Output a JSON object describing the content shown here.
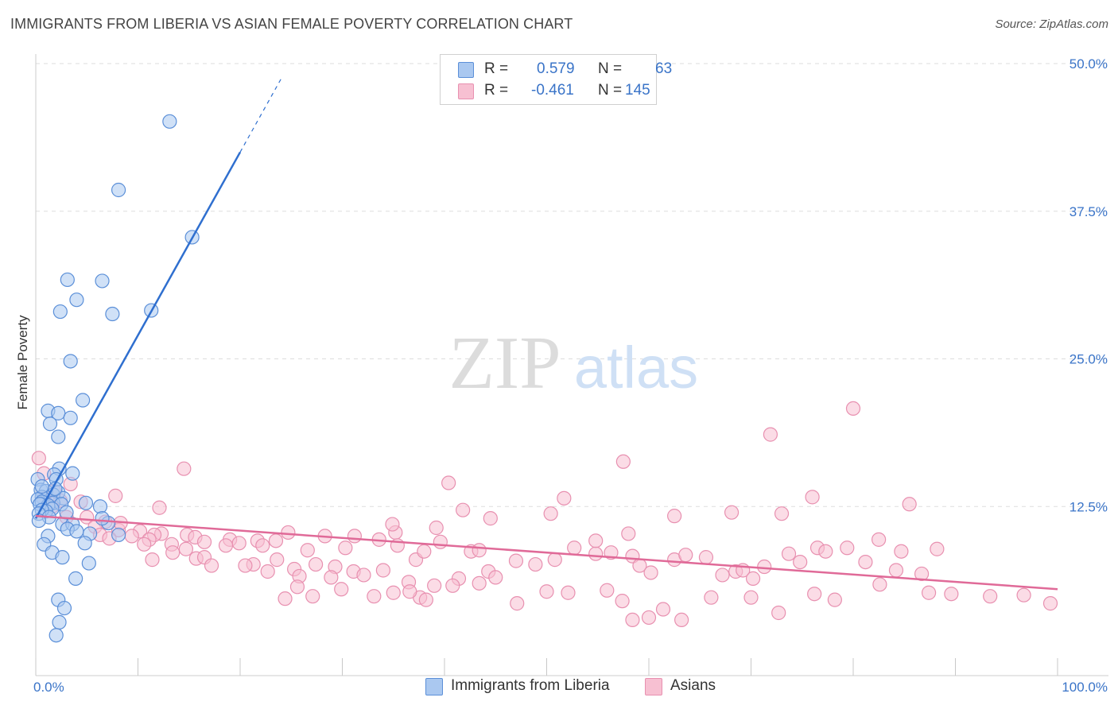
{
  "header": {
    "title": "IMMIGRANTS FROM LIBERIA VS ASIAN FEMALE POVERTY CORRELATION CHART",
    "source": "Source: ZipAtlas.com"
  },
  "watermark": {
    "zip": "ZIP",
    "atlas": "atlas"
  },
  "legend": {
    "rows": [
      {
        "r_label": "R =",
        "r_value": "0.579",
        "n_label": "N =",
        "n_value": "63"
      },
      {
        "r_label": "R =",
        "r_value": "-0.461",
        "n_label": "N =",
        "n_value": "145"
      }
    ]
  },
  "colors": {
    "blue_fill": "#aac8f0",
    "blue_stroke": "#5b8fd8",
    "blue_line": "#2f6fcf",
    "pink_fill": "#f7c0d2",
    "pink_stroke": "#e890b0",
    "pink_line": "#e06a98",
    "tick_text": "#3a74c8",
    "grid": "#dddddd"
  },
  "chart_data": {
    "type": "scatter",
    "title": "IMMIGRANTS FROM LIBERIA VS ASIAN FEMALE POVERTY CORRELATION CHART",
    "xlabel": "",
    "ylabel": "Female Poverty",
    "xlim": [
      0,
      100
    ],
    "ylim": [
      0,
      50
    ],
    "x_ticks": [
      {
        "value": 0,
        "label": "0.0%"
      },
      {
        "value": 100,
        "label": "100.0%"
      }
    ],
    "y_ticks": [
      {
        "value": 12.5,
        "label": "12.5%"
      },
      {
        "value": 25.0,
        "label": "25.0%"
      },
      {
        "value": 37.5,
        "label": "37.5%"
      },
      {
        "value": 50.0,
        "label": "50.0%"
      }
    ],
    "grid": true,
    "series": [
      {
        "name": "Immigrants from Liberia",
        "r": 0.579,
        "n": 63,
        "trend": {
          "x0": 0,
          "y0": 11.5,
          "x1": 20,
          "y1": 42.5,
          "dash_to_x": 24,
          "dash_to_y": 48.7
        },
        "points": [
          [
            13.1,
            45.1
          ],
          [
            8.1,
            39.3
          ],
          [
            15.3,
            35.3
          ],
          [
            3.1,
            31.7
          ],
          [
            6.5,
            31.6
          ],
          [
            4.0,
            30.0
          ],
          [
            2.4,
            29.0
          ],
          [
            7.5,
            28.8
          ],
          [
            11.3,
            29.1
          ],
          [
            3.4,
            24.8
          ],
          [
            4.6,
            21.5
          ],
          [
            1.2,
            20.6
          ],
          [
            2.2,
            20.4
          ],
          [
            3.4,
            20.0
          ],
          [
            1.4,
            19.5
          ],
          [
            2.2,
            18.4
          ],
          [
            2.3,
            15.7
          ],
          [
            3.6,
            15.3
          ],
          [
            1.8,
            15.2
          ],
          [
            2.0,
            14.8
          ],
          [
            0.2,
            14.8
          ],
          [
            0.5,
            13.9
          ],
          [
            2.2,
            13.7
          ],
          [
            1.0,
            13.8
          ],
          [
            1.7,
            13.5
          ],
          [
            0.6,
            13.3
          ],
          [
            2.7,
            13.2
          ],
          [
            0.2,
            13.1
          ],
          [
            0.6,
            12.9
          ],
          [
            1.7,
            12.8
          ],
          [
            1.2,
            12.6
          ],
          [
            0.4,
            12.7
          ],
          [
            2.5,
            12.7
          ],
          [
            1.6,
            12.3
          ],
          [
            1.0,
            12.1
          ],
          [
            0.6,
            12.2
          ],
          [
            0.3,
            11.9
          ],
          [
            4.9,
            12.8
          ],
          [
            6.3,
            12.5
          ],
          [
            3.0,
            12.0
          ],
          [
            7.1,
            11.1
          ],
          [
            1.3,
            11.6
          ],
          [
            6.5,
            11.5
          ],
          [
            0.3,
            11.3
          ],
          [
            2.6,
            11.0
          ],
          [
            3.6,
            11.0
          ],
          [
            3.1,
            10.6
          ],
          [
            4.0,
            10.4
          ],
          [
            5.3,
            10.2
          ],
          [
            1.2,
            10.0
          ],
          [
            0.8,
            9.3
          ],
          [
            4.8,
            9.4
          ],
          [
            8.1,
            10.1
          ],
          [
            1.6,
            8.6
          ],
          [
            2.6,
            8.2
          ],
          [
            5.2,
            7.7
          ],
          [
            3.9,
            6.4
          ],
          [
            2.2,
            4.6
          ],
          [
            2.8,
            3.9
          ],
          [
            2.3,
            2.7
          ],
          [
            2.0,
            1.6
          ],
          [
            0.6,
            14.2
          ],
          [
            1.9,
            14.0
          ]
        ]
      },
      {
        "name": "Asians",
        "r": -0.461,
        "n": 145,
        "trend": {
          "x0": 0,
          "y0": 11.7,
          "x1": 100,
          "y1": 5.5
        },
        "points": [
          [
            0.3,
            16.6
          ],
          [
            0.8,
            15.3
          ],
          [
            14.5,
            15.7
          ],
          [
            3.4,
            14.4
          ],
          [
            1.8,
            13.8
          ],
          [
            0.8,
            13.2
          ],
          [
            2.4,
            13.0
          ],
          [
            1.6,
            12.5
          ],
          [
            7.8,
            13.4
          ],
          [
            4.4,
            12.9
          ],
          [
            12.1,
            12.4
          ],
          [
            3.0,
            11.6
          ],
          [
            5.0,
            11.6
          ],
          [
            6.8,
            11.2
          ],
          [
            5.8,
            10.8
          ],
          [
            8.1,
            10.5
          ],
          [
            8.3,
            11.1
          ],
          [
            12.3,
            10.2
          ],
          [
            10.2,
            10.4
          ],
          [
            6.3,
            10.1
          ],
          [
            9.4,
            10.0
          ],
          [
            11.6,
            10.1
          ],
          [
            7.2,
            9.8
          ],
          [
            11.1,
            9.7
          ],
          [
            10.6,
            9.3
          ],
          [
            13.3,
            9.3
          ],
          [
            14.8,
            10.1
          ],
          [
            15.6,
            9.9
          ],
          [
            19.0,
            9.7
          ],
          [
            16.5,
            9.5
          ],
          [
            19.9,
            9.4
          ],
          [
            18.6,
            9.2
          ],
          [
            14.7,
            8.9
          ],
          [
            13.4,
            8.6
          ],
          [
            15.7,
            8.1
          ],
          [
            16.5,
            8.2
          ],
          [
            21.7,
            9.6
          ],
          [
            23.5,
            9.6
          ],
          [
            24.7,
            10.3
          ],
          [
            28.3,
            10.0
          ],
          [
            31.2,
            10.0
          ],
          [
            33.6,
            9.7
          ],
          [
            11.4,
            8.0
          ],
          [
            17.2,
            7.5
          ],
          [
            21.3,
            7.6
          ],
          [
            23.6,
            8.0
          ],
          [
            25.3,
            7.2
          ],
          [
            27.4,
            7.6
          ],
          [
            29.3,
            7.4
          ],
          [
            31.1,
            7.0
          ],
          [
            22.2,
            9.2
          ],
          [
            26.6,
            8.8
          ],
          [
            30.3,
            9.0
          ],
          [
            35.2,
            10.3
          ],
          [
            35.4,
            9.2
          ],
          [
            37.2,
            8.0
          ],
          [
            38.0,
            8.7
          ],
          [
            39.6,
            9.5
          ],
          [
            42.6,
            8.7
          ],
          [
            43.4,
            8.8
          ],
          [
            20.5,
            7.5
          ],
          [
            22.7,
            7.0
          ],
          [
            25.8,
            6.6
          ],
          [
            28.9,
            6.5
          ],
          [
            32.1,
            6.7
          ],
          [
            34.0,
            7.1
          ],
          [
            36.5,
            6.1
          ],
          [
            39.0,
            5.8
          ],
          [
            41.4,
            6.4
          ],
          [
            43.4,
            6.0
          ],
          [
            40.8,
            5.8
          ],
          [
            35.0,
            5.2
          ],
          [
            37.6,
            4.8
          ],
          [
            36.6,
            5.3
          ],
          [
            38.2,
            4.6
          ],
          [
            29.9,
            5.5
          ],
          [
            33.1,
            4.9
          ],
          [
            27.1,
            4.9
          ],
          [
            24.4,
            4.7
          ],
          [
            25.6,
            5.7
          ],
          [
            44.3,
            7.0
          ],
          [
            45.0,
            6.5
          ],
          [
            47.0,
            7.9
          ],
          [
            48.9,
            7.6
          ],
          [
            50.8,
            8.0
          ],
          [
            52.7,
            9.0
          ],
          [
            54.8,
            8.5
          ],
          [
            56.3,
            8.6
          ],
          [
            58.4,
            8.3
          ],
          [
            59.1,
            7.5
          ],
          [
            60.2,
            6.9
          ],
          [
            62.5,
            8.0
          ],
          [
            63.6,
            8.4
          ],
          [
            65.6,
            8.2
          ],
          [
            67.2,
            6.7
          ],
          [
            68.5,
            7.0
          ],
          [
            69.2,
            7.1
          ],
          [
            70.2,
            6.4
          ],
          [
            71.3,
            7.4
          ],
          [
            73.7,
            8.5
          ],
          [
            74.8,
            7.8
          ],
          [
            76.5,
            9.0
          ],
          [
            77.3,
            8.7
          ],
          [
            79.4,
            9.0
          ],
          [
            81.2,
            7.8
          ],
          [
            82.5,
            9.7
          ],
          [
            84.7,
            8.7
          ],
          [
            86.7,
            6.8
          ],
          [
            88.2,
            8.9
          ],
          [
            47.1,
            4.3
          ],
          [
            50.0,
            5.3
          ],
          [
            52.1,
            5.2
          ],
          [
            55.9,
            5.4
          ],
          [
            57.4,
            4.5
          ],
          [
            58.4,
            2.9
          ],
          [
            60.0,
            3.1
          ],
          [
            61.4,
            3.8
          ],
          [
            63.2,
            2.9
          ],
          [
            66.1,
            4.8
          ],
          [
            70.0,
            4.8
          ],
          [
            72.7,
            3.5
          ],
          [
            76.2,
            5.1
          ],
          [
            78.2,
            4.6
          ],
          [
            82.6,
            5.9
          ],
          [
            84.2,
            7.1
          ],
          [
            87.4,
            5.2
          ],
          [
            89.6,
            5.1
          ],
          [
            93.4,
            4.9
          ],
          [
            96.7,
            5.0
          ],
          [
            99.3,
            4.3
          ],
          [
            34.9,
            11.0
          ],
          [
            39.2,
            10.7
          ],
          [
            41.8,
            12.2
          ],
          [
            44.5,
            11.5
          ],
          [
            50.4,
            11.9
          ],
          [
            51.7,
            13.2
          ],
          [
            54.8,
            9.6
          ],
          [
            58.0,
            10.2
          ],
          [
            71.9,
            18.6
          ],
          [
            80.0,
            20.8
          ],
          [
            57.5,
            16.3
          ],
          [
            40.4,
            14.5
          ],
          [
            85.5,
            12.7
          ],
          [
            76.0,
            13.3
          ],
          [
            73.0,
            11.9
          ],
          [
            68.1,
            12.0
          ],
          [
            62.5,
            11.7
          ]
        ]
      }
    ],
    "legend_position": "top-center",
    "bottom_legend": [
      "Immigrants from Liberia",
      "Asians"
    ]
  }
}
